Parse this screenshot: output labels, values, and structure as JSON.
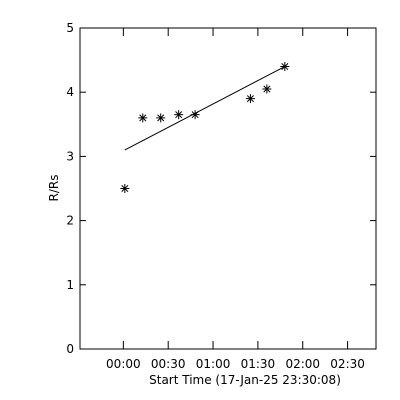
{
  "chart_data": {
    "type": "scatter",
    "xlabel": "Start Time (17-Jan-25 23:30:08)",
    "ylabel": "R/Rs",
    "x": [
      1,
      13,
      25,
      37,
      48,
      85,
      96,
      108
    ],
    "values": [
      2.5,
      3.6,
      3.6,
      3.65,
      3.65,
      3.9,
      4.05,
      4.4
    ],
    "fit": {
      "x": [
        1,
        108
      ],
      "values": [
        3.1,
        4.4
      ]
    },
    "color": "#000000",
    "xlim": [
      -29,
      169
    ],
    "xticks": [
      {
        "value": 0,
        "label": "00:00"
      },
      {
        "value": 30,
        "label": "00:30"
      },
      {
        "value": 60,
        "label": "01:00"
      },
      {
        "value": 90,
        "label": "01:30"
      },
      {
        "value": 120,
        "label": "02:00"
      },
      {
        "value": 150,
        "label": "02:30"
      }
    ],
    "ylim": [
      0,
      5
    ],
    "yticks": [
      0,
      1,
      2,
      3,
      4,
      5
    ]
  }
}
